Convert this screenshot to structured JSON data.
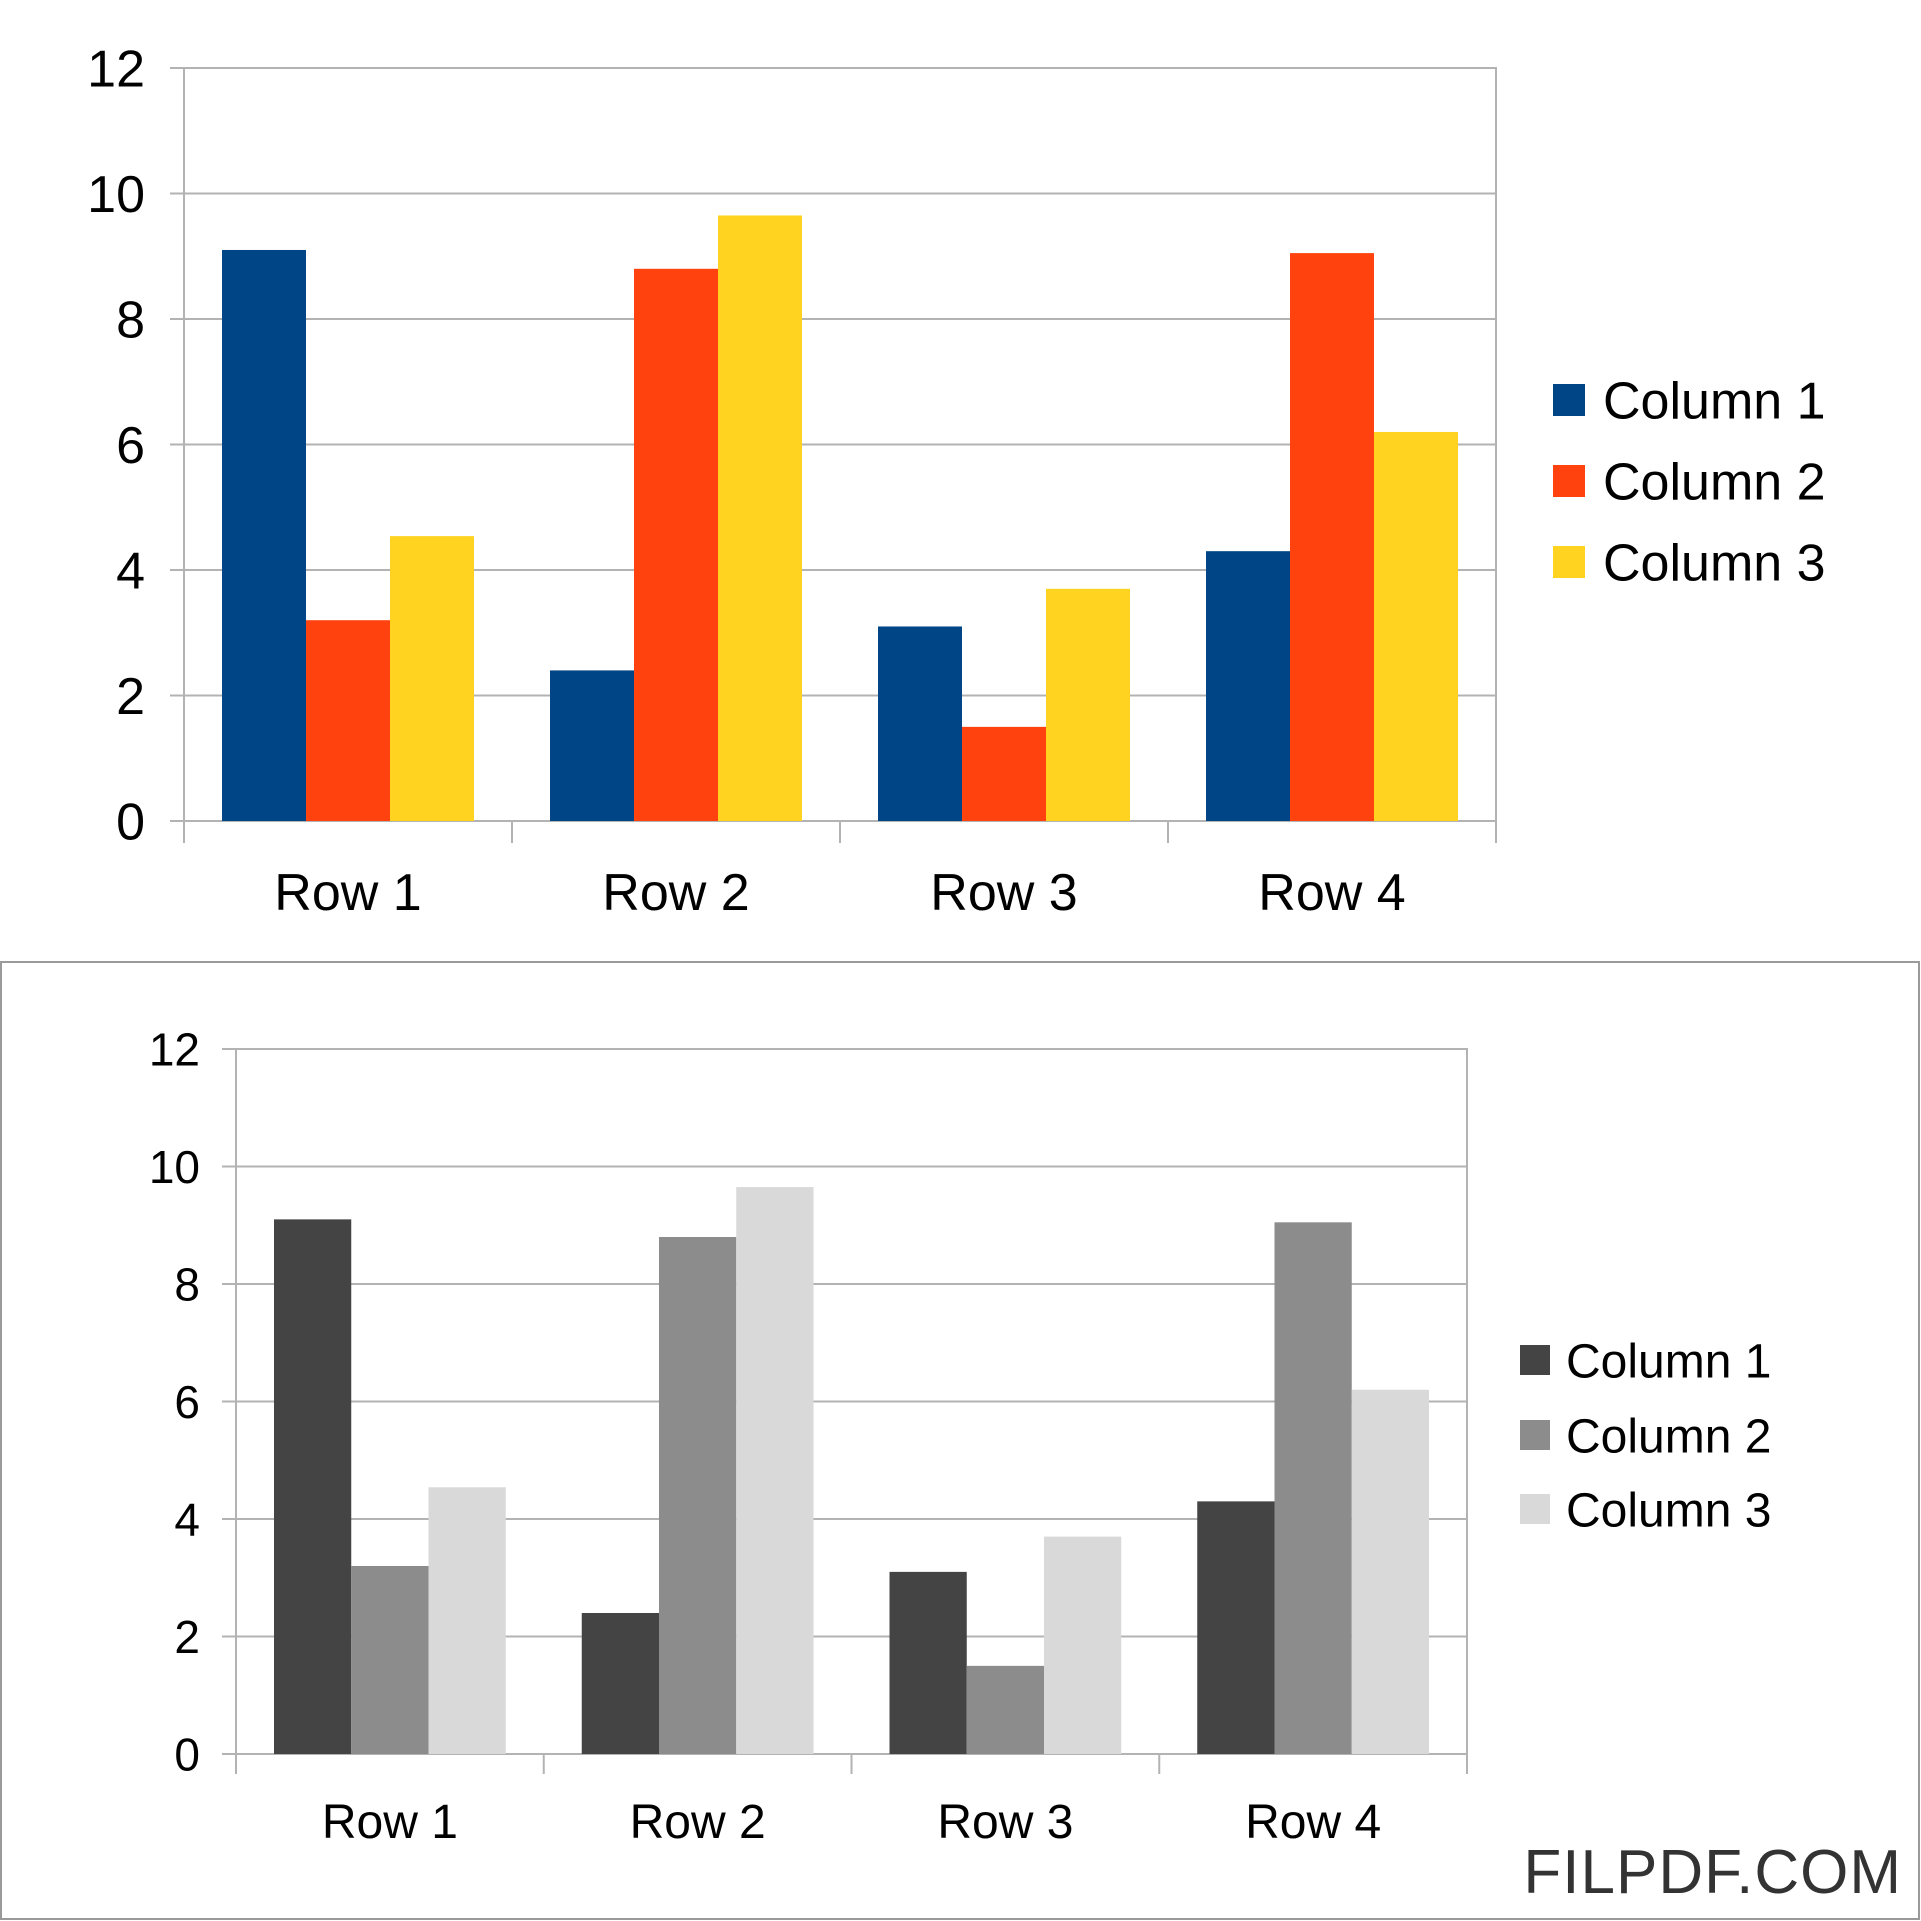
{
  "watermark": "FILPDF.COM",
  "chart_data": [
    {
      "type": "bar",
      "categories": [
        "Row 1",
        "Row 2",
        "Row 3",
        "Row 4"
      ],
      "series": [
        {
          "name": "Column 1",
          "values": [
            9.1,
            2.4,
            3.1,
            4.3
          ],
          "color": "#004586"
        },
        {
          "name": "Column 2",
          "values": [
            3.2,
            8.8,
            1.5,
            9.05
          ],
          "color": "#ff420e"
        },
        {
          "name": "Column 3",
          "values": [
            4.54,
            9.65,
            3.7,
            6.2
          ],
          "color": "#ffd320"
        }
      ],
      "ylim": [
        0,
        12
      ],
      "yticks": [
        "0",
        "2",
        "4",
        "6",
        "8",
        "10",
        "12"
      ],
      "grid": true,
      "legend": "right"
    },
    {
      "type": "bar",
      "categories": [
        "Row 1",
        "Row 2",
        "Row 3",
        "Row 4"
      ],
      "series": [
        {
          "name": "Column 1",
          "values": [
            9.1,
            2.4,
            3.1,
            4.3
          ],
          "color": "#444444"
        },
        {
          "name": "Column 2",
          "values": [
            3.2,
            8.8,
            1.5,
            9.05
          ],
          "color": "#8c8c8c"
        },
        {
          "name": "Column 3",
          "values": [
            4.54,
            9.65,
            3.7,
            6.2
          ],
          "color": "#d9d9d9"
        }
      ],
      "ylim": [
        0,
        12
      ],
      "yticks": [
        "0",
        "2",
        "4",
        "6",
        "8",
        "10",
        "12"
      ],
      "grid": true,
      "legend": "right"
    }
  ]
}
